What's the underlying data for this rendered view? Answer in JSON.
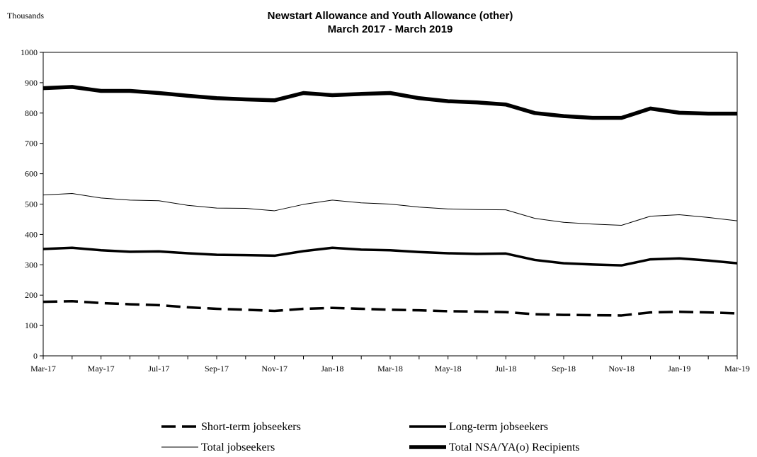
{
  "chart_data": {
    "type": "line",
    "title": "Newstart Allowance and Youth Allowance (other)",
    "subtitle": "March 2017 - March 2019",
    "ylabel": "Thousands",
    "xlabel": "",
    "ylim": [
      0,
      1000
    ],
    "y_ticks": [
      0,
      100,
      200,
      300,
      400,
      500,
      600,
      700,
      800,
      900,
      1000
    ],
    "x": [
      "Mar-17",
      "Apr-17",
      "May-17",
      "Jun-17",
      "Jul-17",
      "Aug-17",
      "Sep-17",
      "Oct-17",
      "Nov-17",
      "Dec-17",
      "Jan-18",
      "Feb-18",
      "Mar-18",
      "Apr-18",
      "May-18",
      "Jun-18",
      "Jul-18",
      "Aug-18",
      "Sep-18",
      "Oct-18",
      "Nov-18",
      "Dec-18",
      "Jan-19",
      "Feb-19",
      "Mar-19"
    ],
    "x_tick_labels": [
      "Mar-17",
      "May-17",
      "Jul-17",
      "Sep-17",
      "Nov-17",
      "Jan-18",
      "Mar-18",
      "May-18",
      "Jul-18",
      "Sep-18",
      "Nov-18",
      "Jan-19",
      "Mar-19"
    ],
    "grid": false,
    "legend_position": "bottom",
    "series": [
      {
        "name": "Short-term jobseekers",
        "style": "dashed",
        "color": "#000000",
        "values": [
          178,
          180,
          174,
          170,
          167,
          160,
          155,
          152,
          148,
          155,
          158,
          155,
          152,
          150,
          147,
          146,
          144,
          137,
          135,
          134,
          133,
          143,
          145,
          143,
          140
        ]
      },
      {
        "name": "Long-term jobseekers",
        "style": "medium",
        "color": "#000000",
        "values": [
          352,
          356,
          348,
          343,
          344,
          338,
          333,
          332,
          330,
          345,
          356,
          350,
          348,
          342,
          338,
          336,
          337,
          316,
          305,
          301,
          298,
          318,
          321,
          314,
          305
        ]
      },
      {
        "name": "Total jobseekers",
        "style": "thin",
        "color": "#000000",
        "values": [
          530,
          535,
          520,
          513,
          511,
          496,
          487,
          486,
          478,
          499,
          513,
          504,
          500,
          490,
          484,
          482,
          481,
          453,
          440,
          434,
          430,
          460,
          465,
          456,
          445
        ]
      },
      {
        "name": "Total NSA/YA(o) Recipients",
        "style": "thick",
        "color": "#000000",
        "values": [
          882,
          886,
          873,
          873,
          866,
          857,
          849,
          845,
          842,
          866,
          859,
          863,
          866,
          849,
          839,
          835,
          828,
          800,
          790,
          784,
          784,
          815,
          801,
          798,
          798
        ]
      }
    ]
  }
}
